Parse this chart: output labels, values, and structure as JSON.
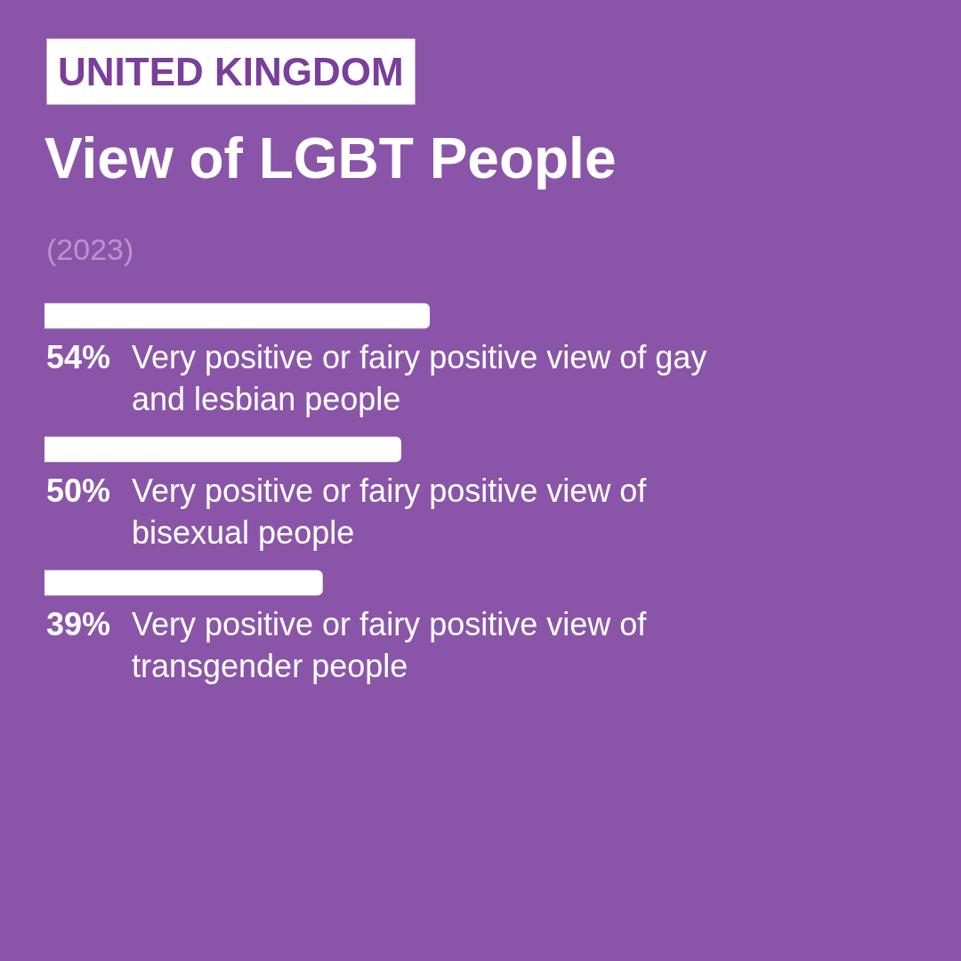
{
  "chart_data": {
    "type": "bar",
    "orientation": "horizontal",
    "subtitle": "UNITED KINGDOM",
    "title": "View of LGBT People",
    "annotations": [
      "(2023)"
    ],
    "categories": [
      "Very positive or fairy positive view of gay and lesbian people",
      "Very positive or fairy positive view of bisexual people",
      "Very positive or fairy positive view of transgender people"
    ],
    "values": [
      54,
      50,
      39
    ],
    "value_labels": [
      "54%",
      "50%",
      "39%"
    ],
    "color": "#ffffff"
  }
}
